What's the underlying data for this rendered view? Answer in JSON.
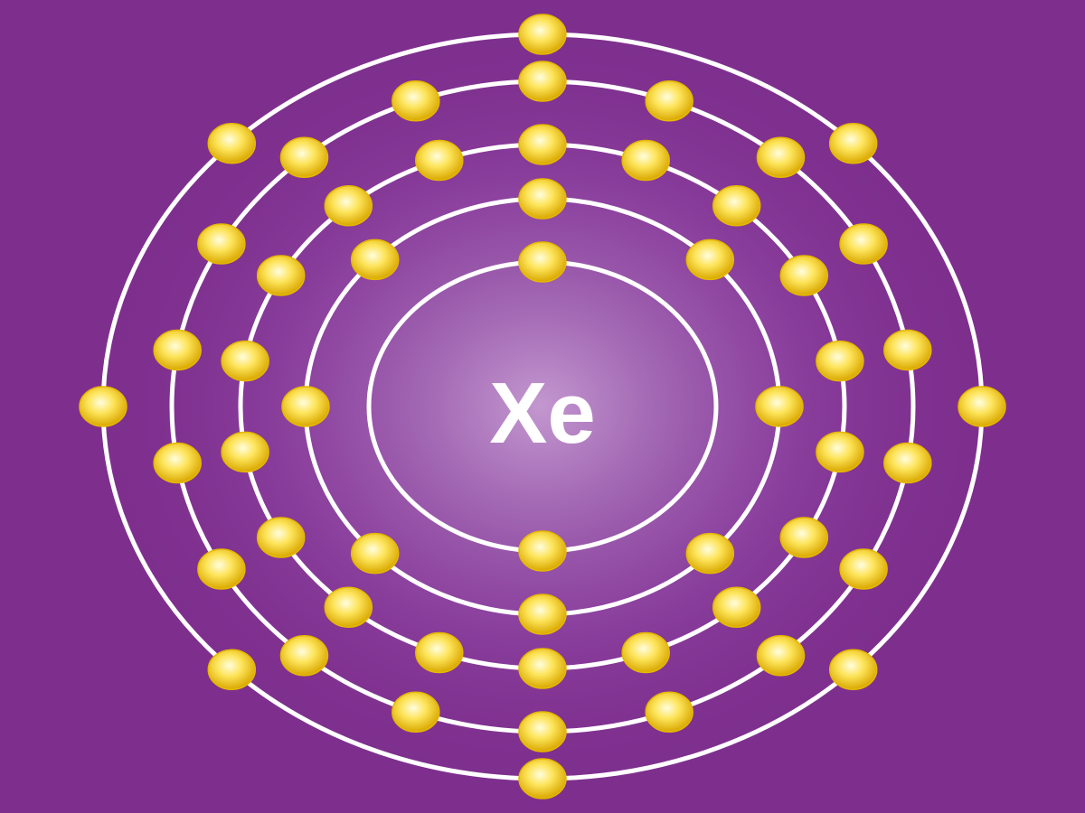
{
  "element_symbol": "Xe",
  "shells": [
    {
      "name": "shell-1",
      "electrons": 2
    },
    {
      "name": "shell-2",
      "electrons": 8
    },
    {
      "name": "shell-3",
      "electrons": 18
    },
    {
      "name": "shell-4",
      "electrons": 18
    },
    {
      "name": "shell-5",
      "electrons": 8
    }
  ],
  "colors": {
    "background": "#7e2f8e",
    "glow_center": "#b584c2",
    "orbit": "#ffffff",
    "electron_core": "#fffde0",
    "electron_mid": "#fde45a",
    "electron_edge": "#d9a800",
    "label": "#ffffff"
  },
  "icons": {
    "electron": "electron-icon",
    "orbit": "orbit-ring"
  }
}
